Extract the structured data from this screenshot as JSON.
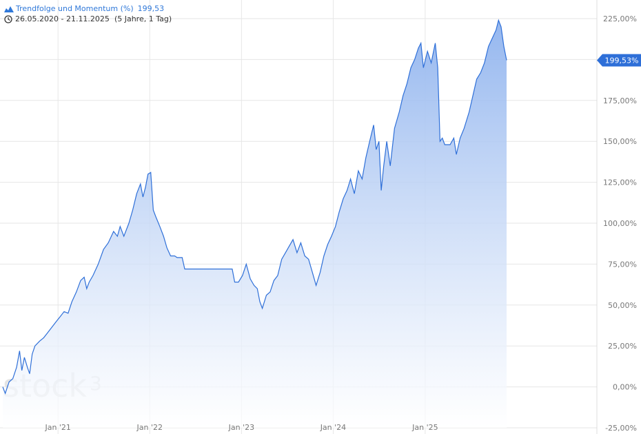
{
  "legend": {
    "series_name": "Trendfolge und Momentum (%)",
    "series_value": "199,53",
    "date_range": "26.05.2020 - 21.11.2025",
    "range_detail": "(5 Jahre, 1 Tag)"
  },
  "watermark": "stock",
  "watermark_sup": "3",
  "last_value_badge": "199,53%",
  "colors": {
    "line": "#2e6fd8",
    "fill_top": "#8fb3ee",
    "badge": "#2e6fd8",
    "grid": "#e6e6e6"
  },
  "chart_data": {
    "type": "area",
    "title": "Trendfolge und Momentum (%)",
    "x_range": [
      "2020-05-26",
      "2025-11-21"
    ],
    "ylim": [
      -25,
      225
    ],
    "y_ticks": [
      {
        "value": 225,
        "label": "225,00%"
      },
      {
        "value": 200,
        "label": ""
      },
      {
        "value": 175,
        "label": "175,00%"
      },
      {
        "value": 150,
        "label": "150,00%"
      },
      {
        "value": 125,
        "label": "125,00%"
      },
      {
        "value": 100,
        "label": "100,00%"
      },
      {
        "value": 75,
        "label": "75,00%"
      },
      {
        "value": 50,
        "label": "50,00%"
      },
      {
        "value": 25,
        "label": "25,00%"
      },
      {
        "value": 0,
        "label": "0,00%"
      },
      {
        "value": -25,
        "label": "-25,00%"
      }
    ],
    "x_ticks": [
      {
        "date": "2021-01-01",
        "label": "Jan '21"
      },
      {
        "date": "2022-01-01",
        "label": "Jan '22"
      },
      {
        "date": "2023-01-01",
        "label": "Jan '23"
      },
      {
        "date": "2024-01-01",
        "label": "Jan '24"
      },
      {
        "date": "2025-01-01",
        "label": "Jan '25"
      }
    ],
    "grid": true,
    "series": [
      {
        "name": "Trendfolge und Momentum (%)",
        "points": [
          [
            "2020-05-26",
            0
          ],
          [
            "2020-06-05",
            -4
          ],
          [
            "2020-06-20",
            3
          ],
          [
            "2020-07-05",
            5
          ],
          [
            "2020-07-20",
            12
          ],
          [
            "2020-08-01",
            22
          ],
          [
            "2020-08-10",
            10
          ],
          [
            "2020-08-20",
            18
          ],
          [
            "2020-09-01",
            12
          ],
          [
            "2020-09-10",
            8
          ],
          [
            "2020-09-20",
            20
          ],
          [
            "2020-10-01",
            25
          ],
          [
            "2020-10-20",
            28
          ],
          [
            "2020-11-05",
            30
          ],
          [
            "2020-11-20",
            33
          ],
          [
            "2020-12-10",
            37
          ],
          [
            "2020-12-25",
            40
          ],
          [
            "2021-01-10",
            43
          ],
          [
            "2021-01-25",
            46
          ],
          [
            "2021-02-10",
            45
          ],
          [
            "2021-02-25",
            52
          ],
          [
            "2021-03-15",
            58
          ],
          [
            "2021-04-01",
            65
          ],
          [
            "2021-04-15",
            67
          ],
          [
            "2021-04-25",
            60
          ],
          [
            "2021-05-05",
            64
          ],
          [
            "2021-05-20",
            68
          ],
          [
            "2021-06-10",
            75
          ],
          [
            "2021-07-01",
            84
          ],
          [
            "2021-07-20",
            88
          ],
          [
            "2021-08-10",
            95
          ],
          [
            "2021-08-25",
            92
          ],
          [
            "2021-09-05",
            98
          ],
          [
            "2021-09-20",
            92
          ],
          [
            "2021-10-10",
            100
          ],
          [
            "2021-10-25",
            108
          ],
          [
            "2021-11-10",
            118
          ],
          [
            "2021-11-25",
            124
          ],
          [
            "2021-12-05",
            116
          ],
          [
            "2021-12-15",
            122
          ],
          [
            "2021-12-25",
            130
          ],
          [
            "2022-01-05",
            131
          ],
          [
            "2022-01-15",
            108
          ],
          [
            "2022-01-25",
            104
          ],
          [
            "2022-02-10",
            98
          ],
          [
            "2022-02-25",
            92
          ],
          [
            "2022-03-10",
            85
          ],
          [
            "2022-03-25",
            80
          ],
          [
            "2022-04-10",
            80
          ],
          [
            "2022-04-20",
            79
          ],
          [
            "2022-05-10",
            79
          ],
          [
            "2022-05-20",
            72
          ],
          [
            "2022-07-01",
            72
          ],
          [
            "2022-09-01",
            72
          ],
          [
            "2022-11-25",
            72
          ],
          [
            "2022-12-05",
            64
          ],
          [
            "2022-12-20",
            64
          ],
          [
            "2023-01-05",
            68
          ],
          [
            "2023-01-20",
            75
          ],
          [
            "2023-02-05",
            66
          ],
          [
            "2023-02-20",
            62
          ],
          [
            "2023-03-05",
            60
          ],
          [
            "2023-03-15",
            52
          ],
          [
            "2023-03-25",
            48
          ],
          [
            "2023-04-10",
            56
          ],
          [
            "2023-04-25",
            58
          ],
          [
            "2023-05-10",
            65
          ],
          [
            "2023-05-25",
            68
          ],
          [
            "2023-06-10",
            78
          ],
          [
            "2023-06-25",
            82
          ],
          [
            "2023-07-10",
            86
          ],
          [
            "2023-07-25",
            90
          ],
          [
            "2023-08-10",
            82
          ],
          [
            "2023-08-25",
            88
          ],
          [
            "2023-09-10",
            80
          ],
          [
            "2023-09-25",
            78
          ],
          [
            "2023-10-10",
            70
          ],
          [
            "2023-10-25",
            62
          ],
          [
            "2023-11-10",
            70
          ],
          [
            "2023-11-25",
            80
          ],
          [
            "2023-12-10",
            87
          ],
          [
            "2023-12-25",
            92
          ],
          [
            "2024-01-10",
            98
          ],
          [
            "2024-01-25",
            107
          ],
          [
            "2024-02-10",
            115
          ],
          [
            "2024-02-25",
            120
          ],
          [
            "2024-03-10",
            127
          ],
          [
            "2024-03-25",
            118
          ],
          [
            "2024-04-10",
            132
          ],
          [
            "2024-04-25",
            127
          ],
          [
            "2024-05-10",
            140
          ],
          [
            "2024-05-25",
            150
          ],
          [
            "2024-06-10",
            160
          ],
          [
            "2024-06-20",
            145
          ],
          [
            "2024-07-01",
            150
          ],
          [
            "2024-07-10",
            120
          ],
          [
            "2024-07-20",
            135
          ],
          [
            "2024-08-01",
            150
          ],
          [
            "2024-08-15",
            135
          ],
          [
            "2024-09-01",
            158
          ],
          [
            "2024-09-20",
            168
          ],
          [
            "2024-10-05",
            178
          ],
          [
            "2024-10-20",
            185
          ],
          [
            "2024-11-05",
            195
          ],
          [
            "2024-11-20",
            200
          ],
          [
            "2024-12-05",
            207
          ],
          [
            "2024-12-15",
            210
          ],
          [
            "2024-12-25",
            195
          ],
          [
            "2025-01-10",
            205
          ],
          [
            "2025-01-25",
            198
          ],
          [
            "2025-02-10",
            210
          ],
          [
            "2025-02-20",
            195
          ],
          [
            "2025-03-01",
            150
          ],
          [
            "2025-03-10",
            152
          ],
          [
            "2025-03-20",
            148
          ],
          [
            "2025-04-10",
            148
          ],
          [
            "2025-04-25",
            152
          ],
          [
            "2025-05-05",
            142
          ],
          [
            "2025-05-20",
            152
          ],
          [
            "2025-06-05",
            158
          ],
          [
            "2025-06-25",
            168
          ],
          [
            "2025-07-10",
            178
          ],
          [
            "2025-07-25",
            188
          ],
          [
            "2025-08-10",
            192
          ],
          [
            "2025-08-25",
            198
          ],
          [
            "2025-09-10",
            208
          ],
          [
            "2025-09-25",
            213
          ],
          [
            "2025-10-10",
            218
          ],
          [
            "2025-10-20",
            224
          ],
          [
            "2025-10-30",
            220
          ],
          [
            "2025-11-10",
            208
          ],
          [
            "2025-11-21",
            199.53
          ]
        ]
      }
    ]
  }
}
